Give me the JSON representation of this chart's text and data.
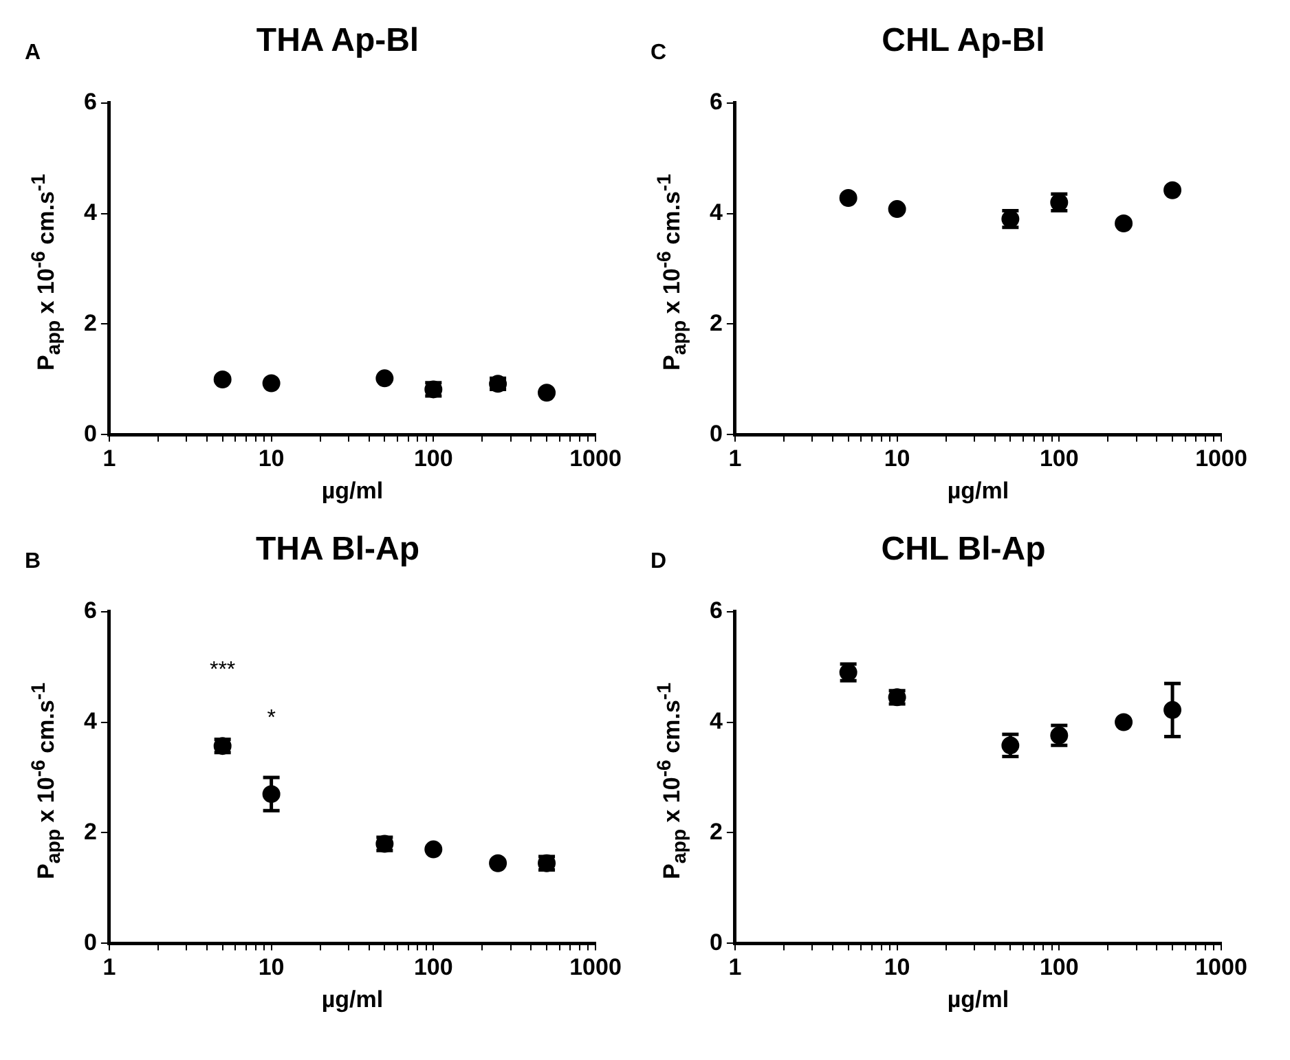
{
  "chart_data": [
    {
      "type": "scatter",
      "title": "THA Ap-Bl",
      "xlabel": "µg/ml",
      "ylabel": "P$_{app}$ x 10$^{-6}$ cm.s$^{-1}$",
      "annotations": [
        "A"
      ],
      "log": "x",
      "grid": false,
      "marker": "circle",
      "xlim": [
        1,
        1000
      ],
      "ylim": [
        0,
        6
      ],
      "xticks": [
        1,
        {
          "value": 2,
          "label": null
        },
        {
          "value": 3,
          "label": null
        },
        {
          "value": 4,
          "label": null
        },
        {
          "value": 5,
          "label": null
        },
        {
          "value": 6,
          "label": null
        },
        {
          "value": 7,
          "label": null
        },
        {
          "value": 8,
          "label": null
        },
        {
          "value": 9,
          "label": null
        },
        10,
        {
          "value": 20,
          "label": null
        },
        {
          "value": 30,
          "label": null
        },
        {
          "value": 40,
          "label": null
        },
        {
          "value": 50,
          "label": null
        },
        {
          "value": 60,
          "label": null
        },
        {
          "value": 70,
          "label": null
        },
        {
          "value": 80,
          "label": null
        },
        {
          "value": 90,
          "label": null
        },
        100,
        {
          "value": 200,
          "label": null
        },
        {
          "value": 300,
          "label": null
        },
        {
          "value": 400,
          "label": null
        },
        {
          "value": 500,
          "label": null
        },
        {
          "value": 600,
          "label": null
        },
        {
          "value": 700,
          "label": null
        },
        {
          "value": 800,
          "label": null
        },
        {
          "value": 900,
          "label": null
        },
        1000
      ],
      "yticks": [
        0,
        2,
        4,
        6
      ],
      "series": [
        {
          "color": "#000000",
          "x": [
            5,
            10,
            50,
            100,
            250,
            500
          ],
          "values": [
            1.0,
            0.93,
            1.02,
            0.82,
            0.92,
            0.76
          ],
          "errors": [
            null,
            null,
            null,
            0.12,
            0.1,
            null
          ]
        }
      ]
    },
    {
      "type": "scatter",
      "title": "CHL Ap-Bl",
      "xlabel": "µg/ml",
      "ylabel": "P$_{app}$ x 10$^{-6}$ cm.s$^{-1}$",
      "annotations": [
        "C"
      ],
      "log": "x",
      "grid": false,
      "marker": "circle",
      "xlim": [
        1,
        1000
      ],
      "ylim": [
        0,
        6
      ],
      "xticks": [
        1,
        {
          "value": 2,
          "label": null
        },
        {
          "value": 3,
          "label": null
        },
        {
          "value": 4,
          "label": null
        },
        {
          "value": 5,
          "label": null
        },
        {
          "value": 6,
          "label": null
        },
        {
          "value": 7,
          "label": null
        },
        {
          "value": 8,
          "label": null
        },
        {
          "value": 9,
          "label": null
        },
        10,
        {
          "value": 20,
          "label": null
        },
        {
          "value": 30,
          "label": null
        },
        {
          "value": 40,
          "label": null
        },
        {
          "value": 50,
          "label": null
        },
        {
          "value": 60,
          "label": null
        },
        {
          "value": 70,
          "label": null
        },
        {
          "value": 80,
          "label": null
        },
        {
          "value": 90,
          "label": null
        },
        100,
        {
          "value": 200,
          "label": null
        },
        {
          "value": 300,
          "label": null
        },
        {
          "value": 400,
          "label": null
        },
        {
          "value": 500,
          "label": null
        },
        {
          "value": 600,
          "label": null
        },
        {
          "value": 700,
          "label": null
        },
        {
          "value": 800,
          "label": null
        },
        {
          "value": 900,
          "label": null
        },
        1000
      ],
      "yticks": [
        0,
        2,
        4,
        6
      ],
      "series": [
        {
          "color": "#000000",
          "x": [
            5,
            10,
            50,
            100,
            250,
            500
          ],
          "values": [
            4.28,
            4.08,
            3.9,
            4.2,
            3.82,
            4.42
          ],
          "errors": [
            null,
            null,
            0.15,
            0.15,
            null,
            null
          ]
        }
      ]
    },
    {
      "type": "scatter",
      "title": "THA Bl-Ap",
      "xlabel": "µg/ml",
      "ylabel": "P$_{app}$ x 10$^{-6}$ cm.s$^{-1}$",
      "annotations": [
        "B",
        {
          "text": "***",
          "x": 5,
          "y": 3.57
        },
        {
          "text": "*",
          "x": 10,
          "y": 2.7
        }
      ],
      "log": "x",
      "grid": false,
      "marker": "circle",
      "xlim": [
        1,
        1000
      ],
      "ylim": [
        0,
        6
      ],
      "xticks": [
        1,
        {
          "value": 2,
          "label": null
        },
        {
          "value": 3,
          "label": null
        },
        {
          "value": 4,
          "label": null
        },
        {
          "value": 5,
          "label": null
        },
        {
          "value": 6,
          "label": null
        },
        {
          "value": 7,
          "label": null
        },
        {
          "value": 8,
          "label": null
        },
        {
          "value": 9,
          "label": null
        },
        10,
        {
          "value": 20,
          "label": null
        },
        {
          "value": 30,
          "label": null
        },
        {
          "value": 40,
          "label": null
        },
        {
          "value": 50,
          "label": null
        },
        {
          "value": 60,
          "label": null
        },
        {
          "value": 70,
          "label": null
        },
        {
          "value": 80,
          "label": null
        },
        {
          "value": 90,
          "label": null
        },
        100,
        {
          "value": 200,
          "label": null
        },
        {
          "value": 300,
          "label": null
        },
        {
          "value": 400,
          "label": null
        },
        {
          "value": 500,
          "label": null
        },
        {
          "value": 600,
          "label": null
        },
        {
          "value": 700,
          "label": null
        },
        {
          "value": 800,
          "label": null
        },
        {
          "value": 900,
          "label": null
        },
        1000
      ],
      "yticks": [
        0,
        2,
        4,
        6
      ],
      "series": [
        {
          "color": "#000000",
          "x": [
            5,
            10,
            50,
            100,
            250,
            500
          ],
          "values": [
            3.57,
            2.7,
            1.8,
            1.7,
            1.45,
            1.45
          ],
          "errors": [
            0.12,
            0.3,
            0.12,
            null,
            null,
            0.12
          ]
        }
      ]
    },
    {
      "type": "scatter",
      "title": "CHL Bl-Ap",
      "xlabel": "µg/ml",
      "ylabel": "P$_{app}$ x 10$^{-6}$ cm.s$^{-1}$",
      "annotations": [
        "D"
      ],
      "log": "x",
      "grid": false,
      "marker": "circle",
      "xlim": [
        1,
        1000
      ],
      "ylim": [
        0,
        6
      ],
      "xticks": [
        1,
        {
          "value": 2,
          "label": null
        },
        {
          "value": 3,
          "label": null
        },
        {
          "value": 4,
          "label": null
        },
        {
          "value": 5,
          "label": null
        },
        {
          "value": 6,
          "label": null
        },
        {
          "value": 7,
          "label": null
        },
        {
          "value": 8,
          "label": null
        },
        {
          "value": 9,
          "label": null
        },
        10,
        {
          "value": 20,
          "label": null
        },
        {
          "value": 30,
          "label": null
        },
        {
          "value": 40,
          "label": null
        },
        {
          "value": 50,
          "label": null
        },
        {
          "value": 60,
          "label": null
        },
        {
          "value": 70,
          "label": null
        },
        {
          "value": 80,
          "label": null
        },
        {
          "value": 90,
          "label": null
        },
        100,
        {
          "value": 200,
          "label": null
        },
        {
          "value": 300,
          "label": null
        },
        {
          "value": 400,
          "label": null
        },
        {
          "value": 500,
          "label": null
        },
        {
          "value": 600,
          "label": null
        },
        {
          "value": 700,
          "label": null
        },
        {
          "value": 800,
          "label": null
        },
        {
          "value": 900,
          "label": null
        },
        1000
      ],
      "yticks": [
        0,
        2,
        4,
        6
      ],
      "series": [
        {
          "color": "#000000",
          "x": [
            5,
            10,
            50,
            100,
            250,
            500
          ],
          "values": [
            4.9,
            4.45,
            3.58,
            3.76,
            4.0,
            4.22
          ],
          "errors": [
            0.15,
            0.12,
            0.2,
            0.18,
            null,
            0.48
          ]
        }
      ]
    }
  ]
}
